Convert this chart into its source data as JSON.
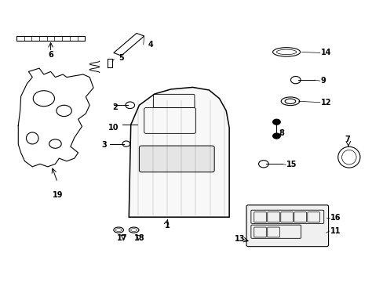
{
  "title": "",
  "bg_color": "#ffffff",
  "line_color": "#000000",
  "fig_width": 4.89,
  "fig_height": 3.6,
  "dpi": 100
}
